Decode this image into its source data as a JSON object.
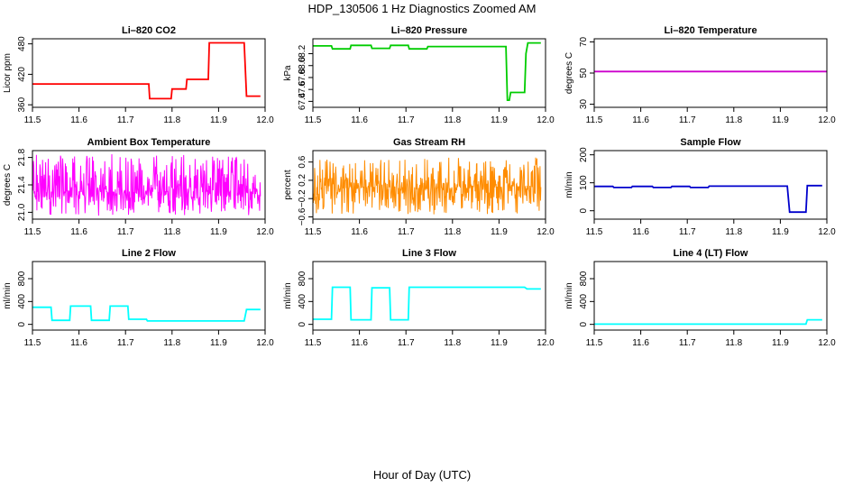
{
  "figure": {
    "title": "HDP_130506  1 Hz Diagnostics Zoomed AM",
    "xlabel": "Hour of Day (UTC)"
  },
  "chart_data": [
    {
      "type": "line",
      "title": "Li–820 CO2",
      "ylabel": "Licor ppm",
      "color": "#ff0000",
      "noise": 0,
      "xlim": [
        11.5,
        12.0
      ],
      "xticks": [
        11.5,
        11.6,
        11.7,
        11.8,
        11.9,
        12.0
      ],
      "xtick_labels": [
        "11.5",
        "11.6",
        "11.7",
        "11.8",
        "11.9",
        "12.0"
      ],
      "ylim": [
        355,
        490
      ],
      "yticks": [
        360,
        420,
        480
      ],
      "ytick_labels": [
        "360",
        "420",
        "480"
      ],
      "series": [
        {
          "x": [
            11.5,
            11.75,
            11.752,
            11.798,
            11.8,
            11.83,
            11.832,
            11.878,
            11.88,
            11.955,
            11.96,
            11.99
          ],
          "y": [
            401,
            401,
            372,
            372,
            391,
            391,
            410,
            410,
            482,
            482,
            377,
            377
          ]
        }
      ]
    },
    {
      "type": "line",
      "title": "Li–820 Pressure",
      "ylabel": "kPa",
      "color": "#00cc00",
      "noise": 0,
      "xlim": [
        11.5,
        12.0
      ],
      "xticks": [
        11.5,
        11.6,
        11.7,
        11.8,
        11.9,
        12.0
      ],
      "xtick_labels": [
        "11.5",
        "11.6",
        "11.7",
        "11.8",
        "11.9",
        "12.0"
      ],
      "ylim": [
        67.3,
        68.45
      ],
      "yticks": [
        67.4,
        67.6,
        67.8,
        68.0,
        68.2
      ],
      "ytick_labels": [
        "67.4",
        "67.6",
        "67.8",
        "68.0",
        "68.2"
      ],
      "series": [
        {
          "x": [
            11.5,
            11.54,
            11.542,
            11.58,
            11.582,
            11.625,
            11.627,
            11.665,
            11.667,
            11.705,
            11.707,
            11.745,
            11.747,
            11.915,
            11.918,
            11.922,
            11.925,
            11.955,
            11.958,
            11.962,
            11.99
          ],
          "y": [
            68.33,
            68.33,
            68.28,
            68.28,
            68.34,
            68.34,
            68.29,
            68.29,
            68.34,
            68.34,
            68.28,
            68.28,
            68.32,
            68.32,
            67.42,
            67.42,
            67.55,
            67.55,
            68.2,
            68.38,
            68.38
          ]
        }
      ]
    },
    {
      "type": "line",
      "title": "Li–820 Temperature",
      "ylabel": "degrees C",
      "color": "#cc00cc",
      "noise": 0,
      "xlim": [
        11.5,
        12.0
      ],
      "xticks": [
        11.5,
        11.6,
        11.7,
        11.8,
        11.9,
        12.0
      ],
      "xtick_labels": [
        "11.5",
        "11.6",
        "11.7",
        "11.8",
        "11.9",
        "12.0"
      ],
      "ylim": [
        28,
        72
      ],
      "yticks": [
        30,
        50,
        70
      ],
      "ytick_labels": [
        "30",
        "50",
        "70"
      ],
      "series": [
        {
          "x": [
            11.5,
            12.0
          ],
          "y": [
            51,
            51
          ]
        }
      ]
    },
    {
      "type": "line",
      "title": "Ambient Box Temperature",
      "ylabel": "degrees C",
      "color": "#ff00ff",
      "noise": 1,
      "xlim": [
        11.5,
        12.0
      ],
      "xticks": [
        11.5,
        11.6,
        11.7,
        11.8,
        11.9,
        12.0
      ],
      "xtick_labels": [
        "11.5",
        "11.6",
        "11.7",
        "11.8",
        "11.9",
        "12.0"
      ],
      "ylim": [
        20.9,
        21.9
      ],
      "yticks": [
        21.0,
        21.4,
        21.8
      ],
      "ytick_labels": [
        "21.0",
        "21.4",
        "21.8"
      ],
      "series": [
        {
          "x": [
            11.5,
            11.99
          ],
          "y": [
            21.3,
            21.3
          ],
          "range": [
            20.95,
            21.85
          ]
        }
      ]
    },
    {
      "type": "line",
      "title": "Gas Stream RH",
      "ylabel": "percent",
      "color": "#ff8c00",
      "noise": 1,
      "xlim": [
        11.5,
        12.0
      ],
      "xticks": [
        11.5,
        11.6,
        11.7,
        11.8,
        11.9,
        12.0
      ],
      "xtick_labels": [
        "11.5",
        "11.6",
        "11.7",
        "11.8",
        "11.9",
        "12.0"
      ],
      "ylim": [
        -0.65,
        0.85
      ],
      "yticks": [
        -0.6,
        -0.2,
        0.2,
        0.6
      ],
      "ytick_labels": [
        "−0.6",
        "−0.2",
        "0.2",
        "0.6"
      ],
      "series": [
        {
          "x": [
            11.5,
            11.99
          ],
          "y": [
            0.05,
            0.05
          ],
          "range": [
            -0.55,
            0.7
          ]
        }
      ]
    },
    {
      "type": "line",
      "title": "Sample Flow",
      "ylabel": "ml/min",
      "color": "#0000cc",
      "noise": 0,
      "xlim": [
        11.5,
        12.0
      ],
      "xticks": [
        11.5,
        11.6,
        11.7,
        11.8,
        11.9,
        12.0
      ],
      "xtick_labels": [
        "11.5",
        "11.6",
        "11.7",
        "11.8",
        "11.9",
        "12.0"
      ],
      "ylim": [
        -30,
        215
      ],
      "yticks": [
        0,
        100,
        200
      ],
      "ytick_labels": [
        "0",
        "100",
        "200"
      ],
      "series": [
        {
          "x": [
            11.5,
            11.54,
            11.542,
            11.58,
            11.582,
            11.625,
            11.627,
            11.665,
            11.667,
            11.705,
            11.707,
            11.745,
            11.747,
            11.915,
            11.92,
            11.955,
            11.958,
            11.99
          ],
          "y": [
            87,
            87,
            83,
            83,
            87,
            87,
            83,
            83,
            87,
            87,
            83,
            83,
            88,
            88,
            -5,
            -5,
            90,
            90
          ]
        }
      ]
    },
    {
      "type": "line",
      "title": "Line 2 Flow",
      "ylabel": "ml/min",
      "color": "#00ffff",
      "noise": 0,
      "xlim": [
        11.5,
        12.0
      ],
      "xticks": [
        11.5,
        11.6,
        11.7,
        11.8,
        11.9,
        12.0
      ],
      "xtick_labels": [
        "11.5",
        "11.6",
        "11.7",
        "11.8",
        "11.9",
        "12.0"
      ],
      "ylim": [
        -100,
        1100
      ],
      "yticks": [
        0,
        400,
        800
      ],
      "ytick_labels": [
        "0",
        "400",
        "800"
      ],
      "series": [
        {
          "x": [
            11.5,
            11.54,
            11.542,
            11.58,
            11.582,
            11.625,
            11.627,
            11.665,
            11.667,
            11.705,
            11.707,
            11.745,
            11.747,
            11.955,
            11.96,
            11.99
          ],
          "y": [
            300,
            300,
            70,
            70,
            320,
            320,
            70,
            70,
            320,
            320,
            90,
            90,
            60,
            60,
            260,
            260
          ]
        }
      ]
    },
    {
      "type": "line",
      "title": "Line 3 Flow",
      "ylabel": "ml/min",
      "color": "#00ffff",
      "noise": 0,
      "xlim": [
        11.5,
        12.0
      ],
      "xticks": [
        11.5,
        11.6,
        11.7,
        11.8,
        11.9,
        12.0
      ],
      "xtick_labels": [
        "11.5",
        "11.6",
        "11.7",
        "11.8",
        "11.9",
        "12.0"
      ],
      "ylim": [
        -100,
        1100
      ],
      "yticks": [
        0,
        400,
        800
      ],
      "ytick_labels": [
        "0",
        "400",
        "800"
      ],
      "series": [
        {
          "x": [
            11.5,
            11.54,
            11.542,
            11.58,
            11.582,
            11.625,
            11.627,
            11.665,
            11.667,
            11.705,
            11.707,
            11.955,
            11.96,
            11.99
          ],
          "y": [
            90,
            90,
            650,
            650,
            80,
            80,
            640,
            640,
            80,
            80,
            650,
            650,
            620,
            620
          ]
        }
      ]
    },
    {
      "type": "line",
      "title": "Line 4 (LT) Flow",
      "ylabel": "ml/min",
      "color": "#00ffff",
      "noise": 0,
      "xlim": [
        11.5,
        12.0
      ],
      "xticks": [
        11.5,
        11.6,
        11.7,
        11.8,
        11.9,
        12.0
      ],
      "xtick_labels": [
        "11.5",
        "11.6",
        "11.7",
        "11.8",
        "11.9",
        "12.0"
      ],
      "ylim": [
        -100,
        1100
      ],
      "yticks": [
        0,
        400,
        800
      ],
      "ytick_labels": [
        "0",
        "400",
        "800"
      ],
      "series": [
        {
          "x": [
            11.5,
            11.955,
            11.958,
            11.99
          ],
          "y": [
            5,
            5,
            80,
            80
          ]
        }
      ]
    }
  ]
}
